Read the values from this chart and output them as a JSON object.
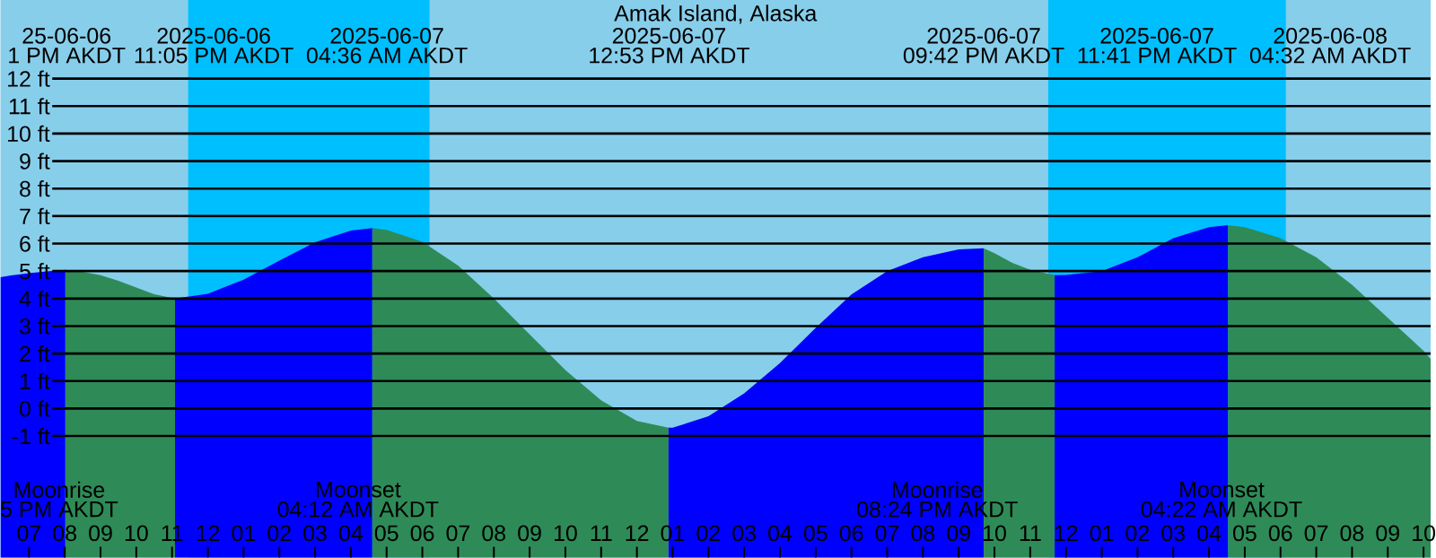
{
  "chart_data": {
    "type": "area",
    "title": "Amak Island, Alaska",
    "xlim": [
      "2025-06-06T18:12",
      "2025-06-08T10:12"
    ],
    "ylim": [
      -5.42,
      14.86
    ],
    "xticks": [
      {
        "value": "2025-06-06T19:00",
        "label": "07"
      },
      {
        "value": "2025-06-06T20:00",
        "label": "08"
      },
      {
        "value": "2025-06-06T21:00",
        "label": "09"
      },
      {
        "value": "2025-06-06T22:00",
        "label": "10"
      },
      {
        "value": "2025-06-06T23:00",
        "label": "11"
      },
      {
        "value": "2025-06-07T00:00",
        "label": "12"
      },
      {
        "value": "2025-06-07T01:00",
        "label": "01"
      },
      {
        "value": "2025-06-07T02:00",
        "label": "02"
      },
      {
        "value": "2025-06-07T03:00",
        "label": "03"
      },
      {
        "value": "2025-06-07T04:00",
        "label": "04"
      },
      {
        "value": "2025-06-07T05:00",
        "label": "05"
      },
      {
        "value": "2025-06-07T06:00",
        "label": "06"
      },
      {
        "value": "2025-06-07T07:00",
        "label": "07"
      },
      {
        "value": "2025-06-07T08:00",
        "label": "08"
      },
      {
        "value": "2025-06-07T09:00",
        "label": "09"
      },
      {
        "value": "2025-06-07T10:00",
        "label": "10"
      },
      {
        "value": "2025-06-07T11:00",
        "label": "11"
      },
      {
        "value": "2025-06-07T12:00",
        "label": "12"
      },
      {
        "value": "2025-06-07T13:00",
        "label": "01"
      },
      {
        "value": "2025-06-07T14:00",
        "label": "02"
      },
      {
        "value": "2025-06-07T15:00",
        "label": "03"
      },
      {
        "value": "2025-06-07T16:00",
        "label": "04"
      },
      {
        "value": "2025-06-07T17:00",
        "label": "05"
      },
      {
        "value": "2025-06-07T18:00",
        "label": "06"
      },
      {
        "value": "2025-06-07T19:00",
        "label": "07"
      },
      {
        "value": "2025-06-07T20:00",
        "label": "08"
      },
      {
        "value": "2025-06-07T21:00",
        "label": "09"
      },
      {
        "value": "2025-06-07T22:00",
        "label": "10"
      },
      {
        "value": "2025-06-07T23:00",
        "label": "11"
      },
      {
        "value": "2025-06-08T00:00",
        "label": "12"
      },
      {
        "value": "2025-06-08T01:00",
        "label": "01"
      },
      {
        "value": "2025-06-08T02:00",
        "label": "02"
      },
      {
        "value": "2025-06-08T03:00",
        "label": "03"
      },
      {
        "value": "2025-06-08T04:00",
        "label": "04"
      },
      {
        "value": "2025-06-08T05:00",
        "label": "05"
      },
      {
        "value": "2025-06-08T06:00",
        "label": "06"
      },
      {
        "value": "2025-06-08T07:00",
        "label": "07"
      },
      {
        "value": "2025-06-08T08:00",
        "label": "08"
      },
      {
        "value": "2025-06-08T09:00",
        "label": "09"
      },
      {
        "value": "2025-06-08T10:00",
        "label": "10"
      }
    ],
    "yticks": [
      {
        "value": -1,
        "label": "-1 ft"
      },
      {
        "value": 0,
        "label": "0 ft"
      },
      {
        "value": 1,
        "label": "1 ft"
      },
      {
        "value": 2,
        "label": "2 ft"
      },
      {
        "value": 3,
        "label": "3 ft"
      },
      {
        "value": 4,
        "label": "4 ft"
      },
      {
        "value": 5,
        "label": "5 ft"
      },
      {
        "value": 6,
        "label": "6 ft"
      },
      {
        "value": 7,
        "label": "7 ft"
      },
      {
        "value": 8,
        "label": "8 ft"
      },
      {
        "value": 9,
        "label": "9 ft"
      },
      {
        "value": 10,
        "label": "10 ft"
      },
      {
        "value": 11,
        "label": "11 ft"
      },
      {
        "value": 12,
        "label": "12 ft"
      }
    ],
    "grid": "y",
    "series": [
      {
        "color": "#0000ff",
        "x": [
          "2025-06-06T18:12",
          "2025-06-06T18:30",
          "2025-06-06T19:00",
          "2025-06-06T19:30",
          "2025-06-06T20:01"
        ],
        "values": [
          4.78,
          4.84,
          4.92,
          4.99,
          5.05
        ]
      },
      {
        "color": "#2e8b57",
        "x": [
          "2025-06-06T20:01",
          "2025-06-06T20:30",
          "2025-06-06T21:00",
          "2025-06-06T21:30",
          "2025-06-06T22:00",
          "2025-06-06T22:30",
          "2025-06-06T23:05"
        ],
        "values": [
          5.05,
          4.97,
          4.85,
          4.65,
          4.4,
          4.16,
          4.0
        ]
      },
      {
        "color": "#0000ff",
        "x": [
          "2025-06-06T23:05",
          "2025-06-07T00:00",
          "2025-06-07T01:00",
          "2025-06-07T02:00",
          "2025-06-07T03:00",
          "2025-06-07T04:00",
          "2025-06-07T04:36"
        ],
        "values": [
          4.0,
          4.17,
          4.69,
          5.38,
          6.05,
          6.47,
          6.56
        ]
      },
      {
        "color": "#2e8b57",
        "x": [
          "2025-06-07T04:36",
          "2025-06-07T05:00",
          "2025-06-07T06:00",
          "2025-06-07T07:00",
          "2025-06-07T08:00",
          "2025-06-07T09:00",
          "2025-06-07T10:00",
          "2025-06-07T11:00",
          "2025-06-07T12:00",
          "2025-06-07T12:53"
        ],
        "values": [
          6.56,
          6.5,
          6.07,
          5.2,
          4.0,
          2.7,
          1.4,
          0.3,
          -0.45,
          -0.7
        ]
      },
      {
        "color": "#0000ff",
        "x": [
          "2025-06-07T12:53",
          "2025-06-07T13:00",
          "2025-06-07T14:00",
          "2025-06-07T15:00",
          "2025-06-07T16:00",
          "2025-06-07T17:00",
          "2025-06-07T18:00",
          "2025-06-07T19:00",
          "2025-06-07T20:00",
          "2025-06-07T21:00",
          "2025-06-07T21:42"
        ],
        "values": [
          -0.7,
          -0.7,
          -0.28,
          0.55,
          1.65,
          2.93,
          4.15,
          5.0,
          5.5,
          5.79,
          5.83
        ]
      },
      {
        "color": "#2e8b57",
        "x": [
          "2025-06-07T21:42",
          "2025-06-07T22:00",
          "2025-06-07T22:30",
          "2025-06-07T23:00",
          "2025-06-07T23:41"
        ],
        "values": [
          5.83,
          5.65,
          5.3,
          5.05,
          4.85
        ]
      },
      {
        "color": "#0000ff",
        "x": [
          "2025-06-07T23:41",
          "2025-06-08T00:00",
          "2025-06-08T01:00",
          "2025-06-08T02:00",
          "2025-06-08T03:00",
          "2025-06-08T04:00",
          "2025-06-08T04:32"
        ],
        "values": [
          4.85,
          4.86,
          5.0,
          5.5,
          6.2,
          6.6,
          6.67
        ]
      },
      {
        "color": "#2e8b57",
        "x": [
          "2025-06-08T04:32",
          "2025-06-08T05:00",
          "2025-06-08T06:00",
          "2025-06-08T07:00",
          "2025-06-08T08:00",
          "2025-06-08T09:00",
          "2025-06-08T10:00",
          "2025-06-08T10:12"
        ],
        "values": [
          6.67,
          6.6,
          6.2,
          5.5,
          4.5,
          3.3,
          2.1,
          1.8
        ]
      }
    ],
    "bands": [
      {
        "axis": "x",
        "from": "2025-06-06T23:27",
        "to": "2025-06-07T06:12",
        "color": "#00bfff"
      },
      {
        "axis": "x",
        "from": "2025-06-07T23:30",
        "to": "2025-06-08T06:09",
        "color": "#00bfff"
      }
    ],
    "annotations": [
      "25-06-06",
      "1 PM AKDT",
      "2025-06-06",
      "11:05 PM AKDT",
      "2025-06-07",
      "04:36 AM AKDT",
      "2025-06-07",
      "12:53 PM AKDT",
      "2025-06-07",
      "09:42 PM AKDT",
      "2025-06-07",
      "11:41 PM AKDT",
      "2025-06-08",
      "04:32 AM AKDT",
      "Moonrise",
      "5 PM AKDT",
      "Moonset",
      "04:12 AM AKDT",
      "Moonrise",
      "08:24 PM AKDT",
      "Moonset",
      "04:22 AM AKDT"
    ]
  }
}
